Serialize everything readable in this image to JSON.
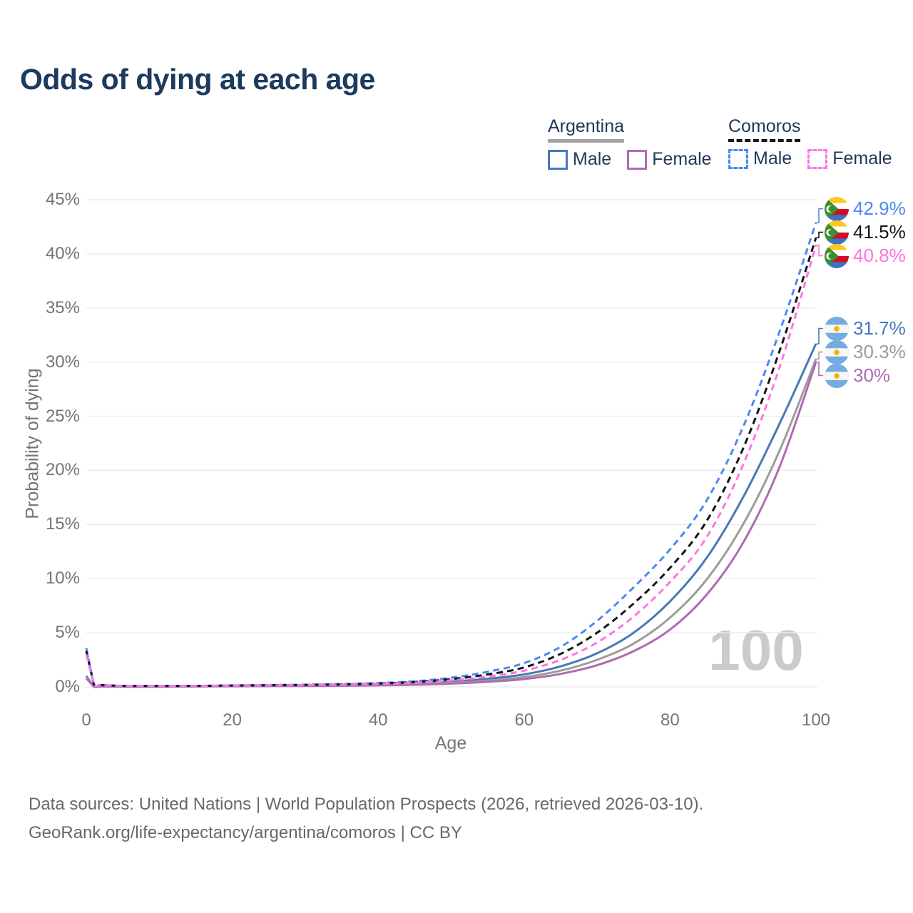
{
  "title": "Odds of dying at each age",
  "legend": {
    "groups": [
      {
        "label": "Argentina",
        "line_style": "solid",
        "underline_color": "#a3a3a3",
        "items": [
          {
            "label": "Male",
            "color": "#4a78b8"
          },
          {
            "label": "Female",
            "color": "#ad6cb2"
          }
        ]
      },
      {
        "label": "Comoros",
        "line_style": "dashed",
        "underline_color": "#141414",
        "items": [
          {
            "label": "Male",
            "color": "#4b8af2"
          },
          {
            "label": "Female",
            "color": "#ff74e2"
          }
        ]
      }
    ]
  },
  "chart_data": {
    "type": "line",
    "xlabel": "Age",
    "ylabel": "Probability of dying",
    "xlim": [
      0,
      100
    ],
    "ylim": [
      0,
      45
    ],
    "x_ticks": [
      0,
      20,
      40,
      60,
      80,
      100
    ],
    "y_ticks": [
      "0%",
      "5%",
      "10%",
      "15%",
      "20%",
      "25%",
      "30%",
      "35%",
      "40%",
      "45%"
    ],
    "grid": true,
    "watermark": "100",
    "legend_position": "top-right",
    "series": [
      {
        "name": "Argentina Male",
        "country": "argentina",
        "color": "#4a78b8",
        "dash": false,
        "end_label": "31.7%",
        "points": [
          [
            0,
            1.0
          ],
          [
            1,
            0.06
          ],
          [
            2,
            0.04
          ],
          [
            5,
            0.03
          ],
          [
            10,
            0.03
          ],
          [
            15,
            0.06
          ],
          [
            20,
            0.1
          ],
          [
            25,
            0.12
          ],
          [
            30,
            0.13
          ],
          [
            35,
            0.16
          ],
          [
            40,
            0.22
          ],
          [
            45,
            0.32
          ],
          [
            50,
            0.5
          ],
          [
            55,
            0.75
          ],
          [
            60,
            1.15
          ],
          [
            65,
            1.9
          ],
          [
            70,
            3.1
          ],
          [
            75,
            5.0
          ],
          [
            80,
            7.9
          ],
          [
            85,
            11.9
          ],
          [
            90,
            17.5
          ],
          [
            95,
            24.3
          ],
          [
            100,
            31.7
          ]
        ]
      },
      {
        "name": "Argentina Both sexes",
        "country": "argentina",
        "color": "#9c9c9c",
        "dash": false,
        "end_label": "30.3%",
        "points": [
          [
            0,
            0.9
          ],
          [
            1,
            0.05
          ],
          [
            2,
            0.035
          ],
          [
            5,
            0.025
          ],
          [
            10,
            0.025
          ],
          [
            15,
            0.05
          ],
          [
            20,
            0.08
          ],
          [
            25,
            0.09
          ],
          [
            30,
            0.1
          ],
          [
            35,
            0.13
          ],
          [
            40,
            0.17
          ],
          [
            45,
            0.25
          ],
          [
            50,
            0.38
          ],
          [
            55,
            0.58
          ],
          [
            60,
            0.9
          ],
          [
            65,
            1.5
          ],
          [
            70,
            2.5
          ],
          [
            75,
            4.0
          ],
          [
            80,
            6.4
          ],
          [
            85,
            9.9
          ],
          [
            90,
            15.0
          ],
          [
            95,
            21.8
          ],
          [
            100,
            30.3
          ]
        ]
      },
      {
        "name": "Argentina Female",
        "country": "argentina",
        "color": "#ad6cb2",
        "dash": false,
        "end_label": "30%",
        "points": [
          [
            0,
            0.8
          ],
          [
            1,
            0.05
          ],
          [
            2,
            0.03
          ],
          [
            5,
            0.02
          ],
          [
            10,
            0.02
          ],
          [
            15,
            0.04
          ],
          [
            20,
            0.06
          ],
          [
            25,
            0.07
          ],
          [
            30,
            0.08
          ],
          [
            35,
            0.1
          ],
          [
            40,
            0.14
          ],
          [
            45,
            0.2
          ],
          [
            50,
            0.3
          ],
          [
            55,
            0.47
          ],
          [
            60,
            0.72
          ],
          [
            65,
            1.2
          ],
          [
            70,
            2.0
          ],
          [
            75,
            3.3
          ],
          [
            80,
            5.3
          ],
          [
            85,
            8.5
          ],
          [
            90,
            13.3
          ],
          [
            95,
            20.3
          ],
          [
            100,
            30.0
          ]
        ]
      },
      {
        "name": "Comoros Male",
        "country": "comoros",
        "color": "#4b8af2",
        "dash": true,
        "end_label": "42.9%",
        "points": [
          [
            0,
            3.6
          ],
          [
            1,
            0.32
          ],
          [
            2,
            0.18
          ],
          [
            5,
            0.1
          ],
          [
            10,
            0.09
          ],
          [
            15,
            0.1
          ],
          [
            20,
            0.14
          ],
          [
            25,
            0.17
          ],
          [
            30,
            0.21
          ],
          [
            35,
            0.27
          ],
          [
            40,
            0.36
          ],
          [
            45,
            0.52
          ],
          [
            50,
            0.85
          ],
          [
            55,
            1.4
          ],
          [
            60,
            2.2
          ],
          [
            65,
            3.7
          ],
          [
            70,
            6.1
          ],
          [
            75,
            9.2
          ],
          [
            80,
            12.7
          ],
          [
            85,
            17.2
          ],
          [
            90,
            24.0
          ],
          [
            95,
            32.8
          ],
          [
            100,
            42.9
          ]
        ]
      },
      {
        "name": "Comoros Both sexes",
        "country": "comoros",
        "color": "#141414",
        "dash": true,
        "end_label": "41.5%",
        "points": [
          [
            0,
            3.3
          ],
          [
            1,
            0.3
          ],
          [
            2,
            0.17
          ],
          [
            5,
            0.095
          ],
          [
            10,
            0.085
          ],
          [
            15,
            0.095
          ],
          [
            20,
            0.125
          ],
          [
            25,
            0.15
          ],
          [
            30,
            0.18
          ],
          [
            35,
            0.23
          ],
          [
            40,
            0.31
          ],
          [
            45,
            0.45
          ],
          [
            50,
            0.72
          ],
          [
            55,
            1.15
          ],
          [
            60,
            1.8
          ],
          [
            65,
            3.05
          ],
          [
            70,
            5.0
          ],
          [
            75,
            7.7
          ],
          [
            80,
            11.0
          ],
          [
            85,
            15.3
          ],
          [
            90,
            22.0
          ],
          [
            95,
            31.0
          ],
          [
            100,
            41.5
          ]
        ]
      },
      {
        "name": "Comoros Female",
        "country": "comoros",
        "color": "#ff74e2",
        "dash": true,
        "end_label": "40.8%",
        "points": [
          [
            0,
            3.0
          ],
          [
            1,
            0.28
          ],
          [
            2,
            0.16
          ],
          [
            5,
            0.09
          ],
          [
            10,
            0.08
          ],
          [
            15,
            0.09
          ],
          [
            20,
            0.11
          ],
          [
            25,
            0.13
          ],
          [
            30,
            0.16
          ],
          [
            35,
            0.2
          ],
          [
            40,
            0.27
          ],
          [
            45,
            0.38
          ],
          [
            50,
            0.6
          ],
          [
            55,
            0.95
          ],
          [
            60,
            1.5
          ],
          [
            65,
            2.5
          ],
          [
            70,
            4.1
          ],
          [
            75,
            6.5
          ],
          [
            80,
            9.7
          ],
          [
            85,
            13.8
          ],
          [
            90,
            20.5
          ],
          [
            95,
            29.5
          ],
          [
            100,
            40.8
          ]
        ]
      }
    ]
  },
  "footer": {
    "line1": "Data sources: United Nations | World Population Prospects (2026, retrieved 2026-03-10).",
    "line2": "GeoRank.org/life-expectancy/argentina/comoros | CC BY"
  }
}
